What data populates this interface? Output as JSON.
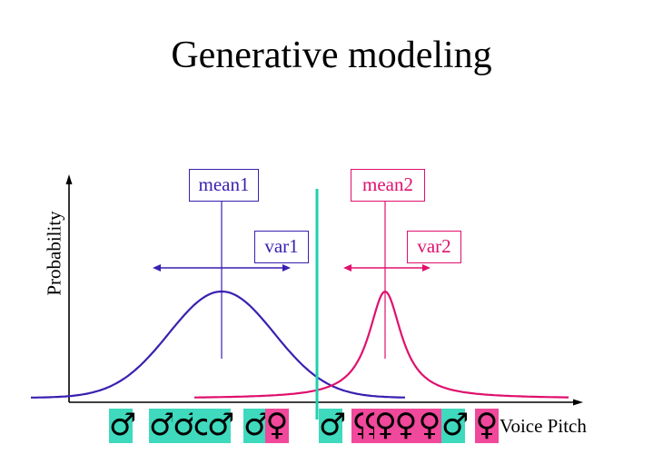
{
  "title": "Generative modeling",
  "axes": {
    "ylabel": "Probability",
    "xlabel": "Voice Pitch"
  },
  "labels": {
    "mean1": "mean1",
    "var1": "var1",
    "mean2": "mean2",
    "var2": "var2"
  },
  "symbols": {
    "male": "♂",
    "female": "♀"
  },
  "colors": {
    "class1_curve": "#3a1fb0",
    "class2_curve": "#e0106e",
    "decision_boundary": "#1fcfb0",
    "male_highlight": "#3fd9bd",
    "female_highlight": "#f0489a"
  },
  "samples": [
    "male",
    "male",
    "male",
    "male",
    "male",
    "male",
    "female",
    "male",
    "female",
    "female",
    "female",
    "female",
    "female",
    "female",
    "male",
    "female"
  ]
}
